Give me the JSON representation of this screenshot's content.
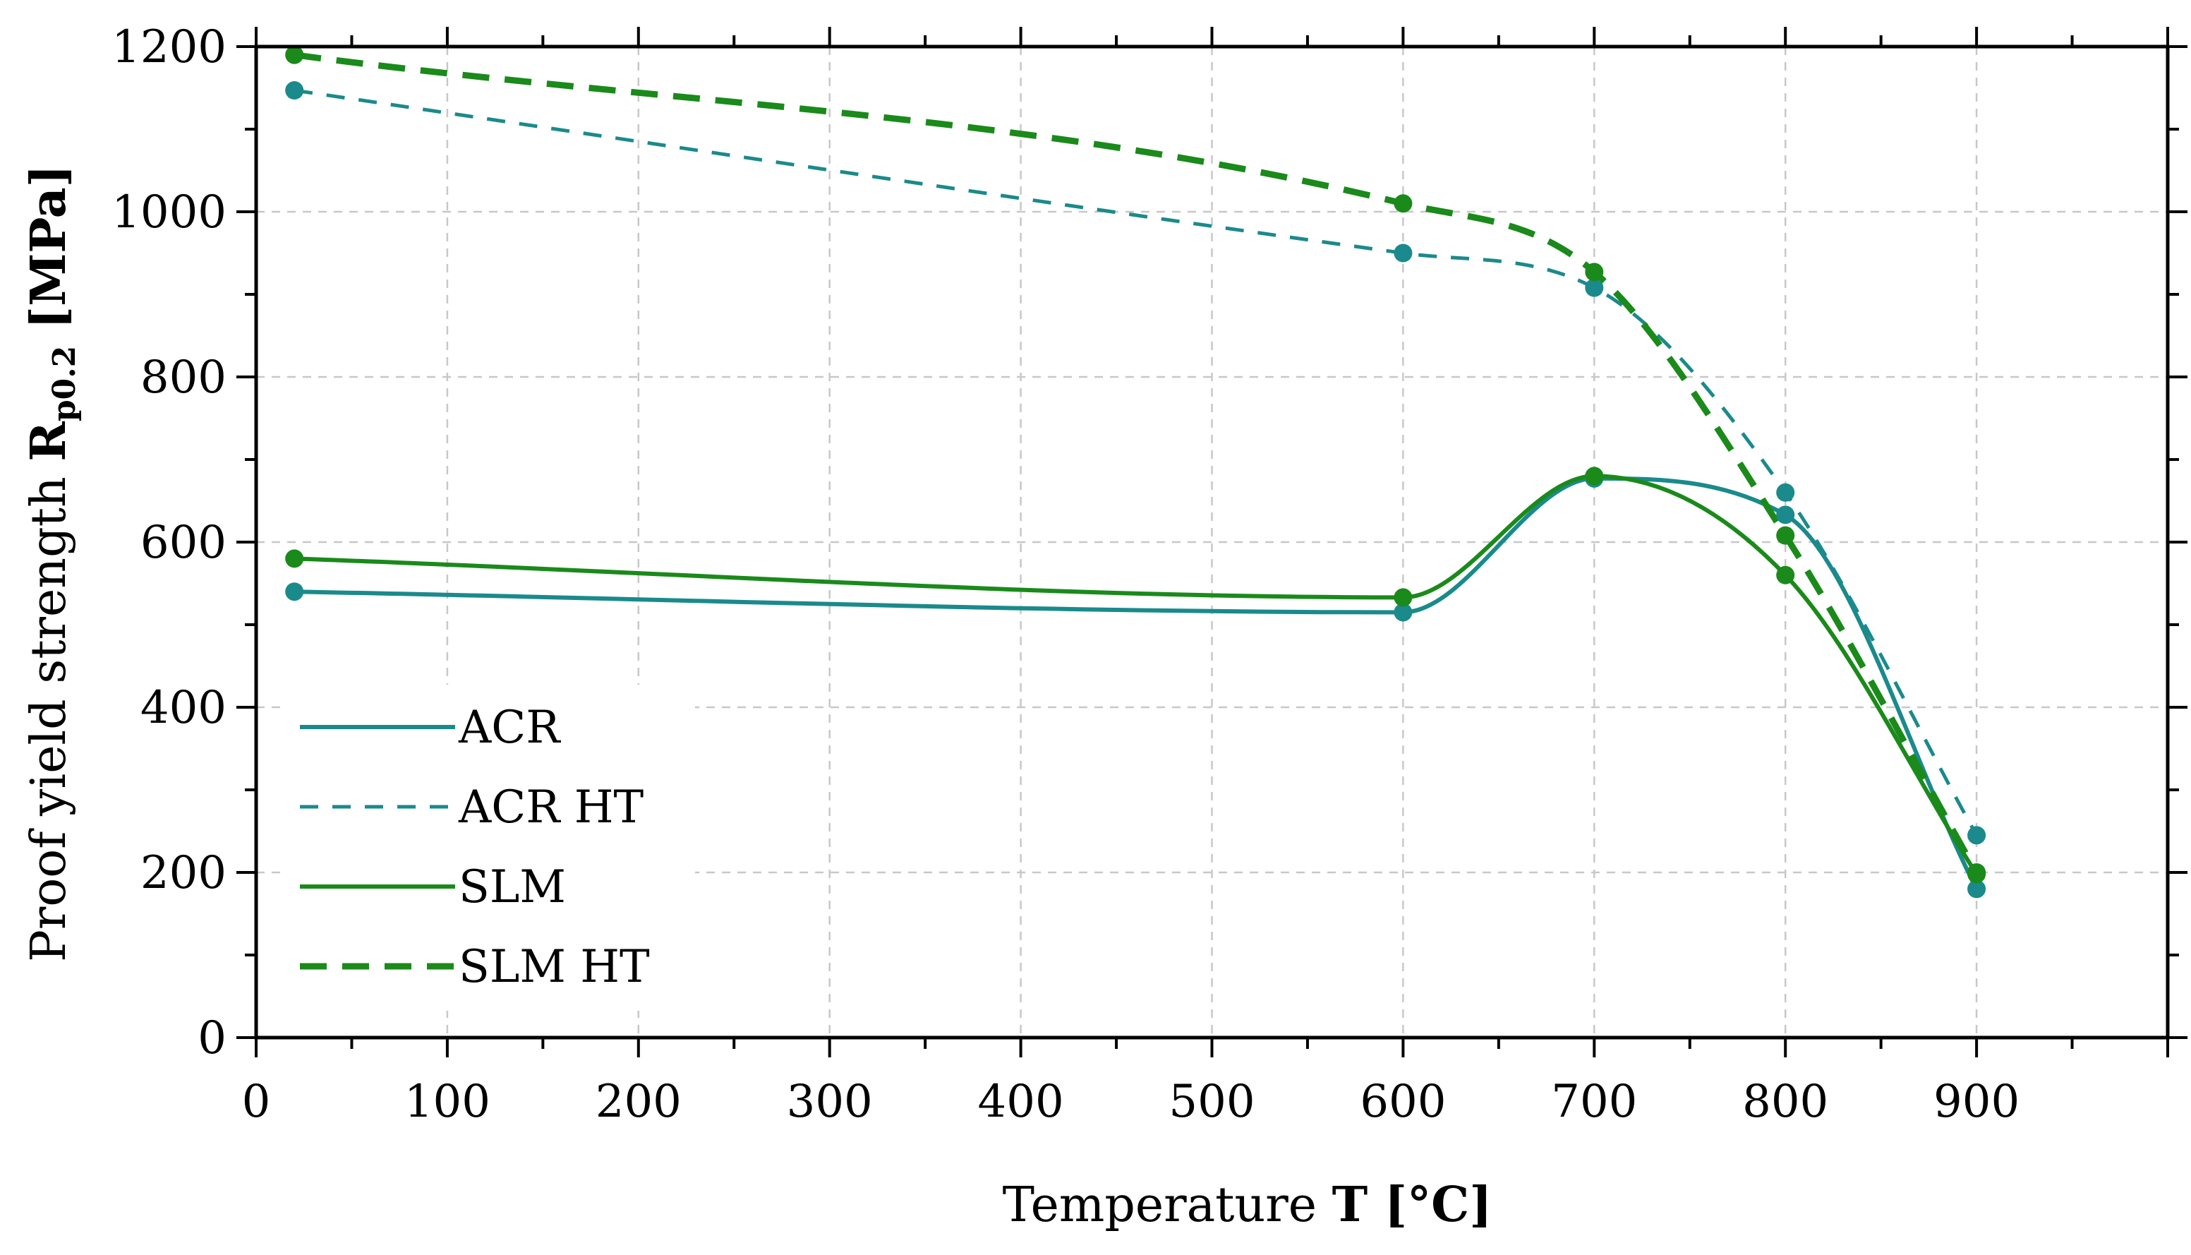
{
  "chart_data": {
    "type": "line",
    "title": "",
    "xlabel": {
      "prefix": "Temperature ",
      "symbol": "T",
      "unit": " [°C]"
    },
    "ylabel": {
      "prefix": "Proof yield strength ",
      "symbol": "R",
      "subscript": "p0.2",
      "unit": " [MPa]"
    },
    "xlim": [
      0,
      1000
    ],
    "ylim": [
      0,
      1200
    ],
    "x_ticks": [
      0,
      100,
      200,
      300,
      400,
      500,
      600,
      700,
      800,
      900
    ],
    "y_ticks": [
      0,
      200,
      400,
      600,
      800,
      1000,
      1200
    ],
    "grid": true,
    "legend_position": "bottom-left",
    "series": [
      {
        "name": "ACR",
        "style": "solid",
        "color": "#1a8a8c",
        "x": [
          20,
          600,
          700,
          800,
          900
        ],
        "y": [
          540,
          515,
          677,
          633,
          180
        ]
      },
      {
        "name": "ACR HT",
        "style": "dashed",
        "color": "#1a8a8c",
        "x": [
          20,
          600,
          700,
          800,
          900
        ],
        "y": [
          1147,
          950,
          908,
          660,
          245
        ]
      },
      {
        "name": "SLM",
        "style": "solid",
        "color": "#1a8a1a",
        "x": [
          20,
          600,
          700,
          800,
          900
        ],
        "y": [
          580,
          533,
          680,
          560,
          198
        ]
      },
      {
        "name": "SLM HT",
        "style": "dashed",
        "color": "#1a8a1a",
        "x": [
          20,
          600,
          700,
          800,
          900
        ],
        "y": [
          1190,
          1010,
          927,
          608,
          200
        ]
      }
    ]
  }
}
